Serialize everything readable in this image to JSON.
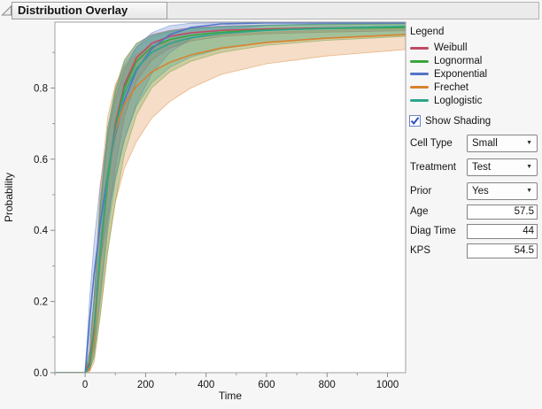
{
  "header": {
    "title": "Distribution Overlay"
  },
  "chart_data": {
    "type": "line",
    "title": "Distribution Overlay",
    "xlabel": "Time",
    "ylabel": "Probability",
    "xlim": [
      -100,
      1060
    ],
    "ylim": [
      0,
      0.985
    ],
    "grid": false,
    "x_ticks_major": [
      0,
      200,
      400,
      600,
      800,
      1000
    ],
    "x_tick_labels": [
      "0",
      "200",
      "400",
      "600",
      "800",
      "1000"
    ],
    "x_ticks_minor": [
      -100,
      100,
      300,
      500,
      700,
      900
    ],
    "y_ticks_major": [
      0,
      0.2,
      0.4,
      0.6,
      0.8
    ],
    "y_tick_labels": [
      "0.0",
      "0.2",
      "0.4",
      "0.6",
      "0.8"
    ],
    "y_ticks_minor": [
      0.1,
      0.3,
      0.5,
      0.7,
      0.9
    ],
    "show_shading": true,
    "x": [
      -100,
      0,
      15,
      30,
      50,
      75,
      100,
      130,
      170,
      220,
      280,
      350,
      450,
      600,
      800,
      1060
    ],
    "series": [
      {
        "name": "Weibull",
        "color": "#c04a63",
        "center": [
          0,
          0,
          0.03,
          0.13,
          0.33,
          0.55,
          0.7,
          0.81,
          0.885,
          0.925,
          0.945,
          0.955,
          0.962,
          0.966,
          0.969,
          0.972
        ],
        "upper": [
          0,
          0,
          0.07,
          0.22,
          0.46,
          0.67,
          0.79,
          0.875,
          0.925,
          0.95,
          0.962,
          0.969,
          0.974,
          0.977,
          0.979,
          0.981
        ],
        "lower": [
          0,
          0,
          0.012,
          0.07,
          0.22,
          0.42,
          0.58,
          0.72,
          0.82,
          0.878,
          0.912,
          0.932,
          0.945,
          0.952,
          0.957,
          0.961
        ]
      },
      {
        "name": "Lognormal",
        "color": "#3aa53a",
        "center": [
          0,
          0,
          0.02,
          0.11,
          0.32,
          0.54,
          0.69,
          0.8,
          0.875,
          0.915,
          0.936,
          0.948,
          0.957,
          0.963,
          0.967,
          0.97
        ],
        "upper": [
          0,
          0,
          0.06,
          0.21,
          0.47,
          0.69,
          0.8,
          0.88,
          0.925,
          0.948,
          0.96,
          0.967,
          0.972,
          0.976,
          0.978,
          0.98
        ],
        "lower": [
          0,
          0,
          0.007,
          0.045,
          0.16,
          0.34,
          0.48,
          0.615,
          0.725,
          0.8,
          0.845,
          0.875,
          0.9,
          0.92,
          0.934,
          0.945
        ]
      },
      {
        "name": "Exponential",
        "color": "#5374c7",
        "center": [
          0,
          0,
          0.15,
          0.28,
          0.42,
          0.56,
          0.67,
          0.765,
          0.85,
          0.91,
          0.95,
          0.97,
          0.98,
          0.983,
          0.983,
          0.983
        ],
        "upper": [
          0,
          0,
          0.21,
          0.37,
          0.53,
          0.67,
          0.77,
          0.85,
          0.915,
          0.955,
          0.975,
          0.982,
          0.983,
          0.983,
          0.983,
          0.983
        ],
        "lower": [
          0,
          0,
          0.1,
          0.2,
          0.31,
          0.44,
          0.55,
          0.655,
          0.755,
          0.84,
          0.9,
          0.938,
          0.962,
          0.976,
          0.981,
          0.982
        ]
      },
      {
        "name": "Frechet",
        "color": "#d9822f",
        "center": [
          0,
          0,
          0.01,
          0.09,
          0.33,
          0.56,
          0.68,
          0.755,
          0.805,
          0.845,
          0.872,
          0.893,
          0.912,
          0.928,
          0.94,
          0.95
        ],
        "upper": [
          0,
          0,
          0.04,
          0.2,
          0.52,
          0.72,
          0.81,
          0.86,
          0.895,
          0.917,
          0.931,
          0.941,
          0.95,
          0.957,
          0.962,
          0.966
        ],
        "lower": [
          0,
          0,
          0.003,
          0.03,
          0.16,
          0.35,
          0.48,
          0.575,
          0.65,
          0.715,
          0.762,
          0.8,
          0.838,
          0.868,
          0.89,
          0.908
        ]
      },
      {
        "name": "Loglogistic",
        "color": "#2ba68c",
        "center": [
          0,
          0,
          0.02,
          0.12,
          0.34,
          0.56,
          0.69,
          0.785,
          0.855,
          0.9,
          0.925,
          0.941,
          0.953,
          0.962,
          0.968,
          0.973
        ],
        "upper": [
          0,
          0,
          0.06,
          0.22,
          0.48,
          0.69,
          0.79,
          0.865,
          0.915,
          0.944,
          0.958,
          0.966,
          0.972,
          0.977,
          0.98,
          0.982
        ],
        "lower": [
          0,
          0,
          0.007,
          0.05,
          0.2,
          0.4,
          0.54,
          0.655,
          0.75,
          0.815,
          0.858,
          0.887,
          0.91,
          0.928,
          0.941,
          0.951
        ]
      }
    ]
  },
  "panel": {
    "legend_title": "Legend",
    "legend_items": [
      {
        "label": "Weibull",
        "color": "#c04a63"
      },
      {
        "label": "Lognormal",
        "color": "#3aa53a"
      },
      {
        "label": "Exponential",
        "color": "#5374c7"
      },
      {
        "label": "Frechet",
        "color": "#d9822f"
      },
      {
        "label": "Loglogistic",
        "color": "#2ba68c"
      }
    ],
    "show_shading": {
      "label": "Show Shading",
      "checked": true
    },
    "dropdowns": [
      {
        "label": "Cell Type",
        "value": "Small"
      },
      {
        "label": "Treatment",
        "value": "Test"
      },
      {
        "label": "Prior",
        "value": "Yes"
      }
    ],
    "inputs": [
      {
        "label": "Age",
        "value": "57.5"
      },
      {
        "label": "Diag Time",
        "value": "44"
      },
      {
        "label": "KPS",
        "value": "54.5"
      }
    ],
    "colors": {
      "check": "#2b50c0"
    }
  }
}
